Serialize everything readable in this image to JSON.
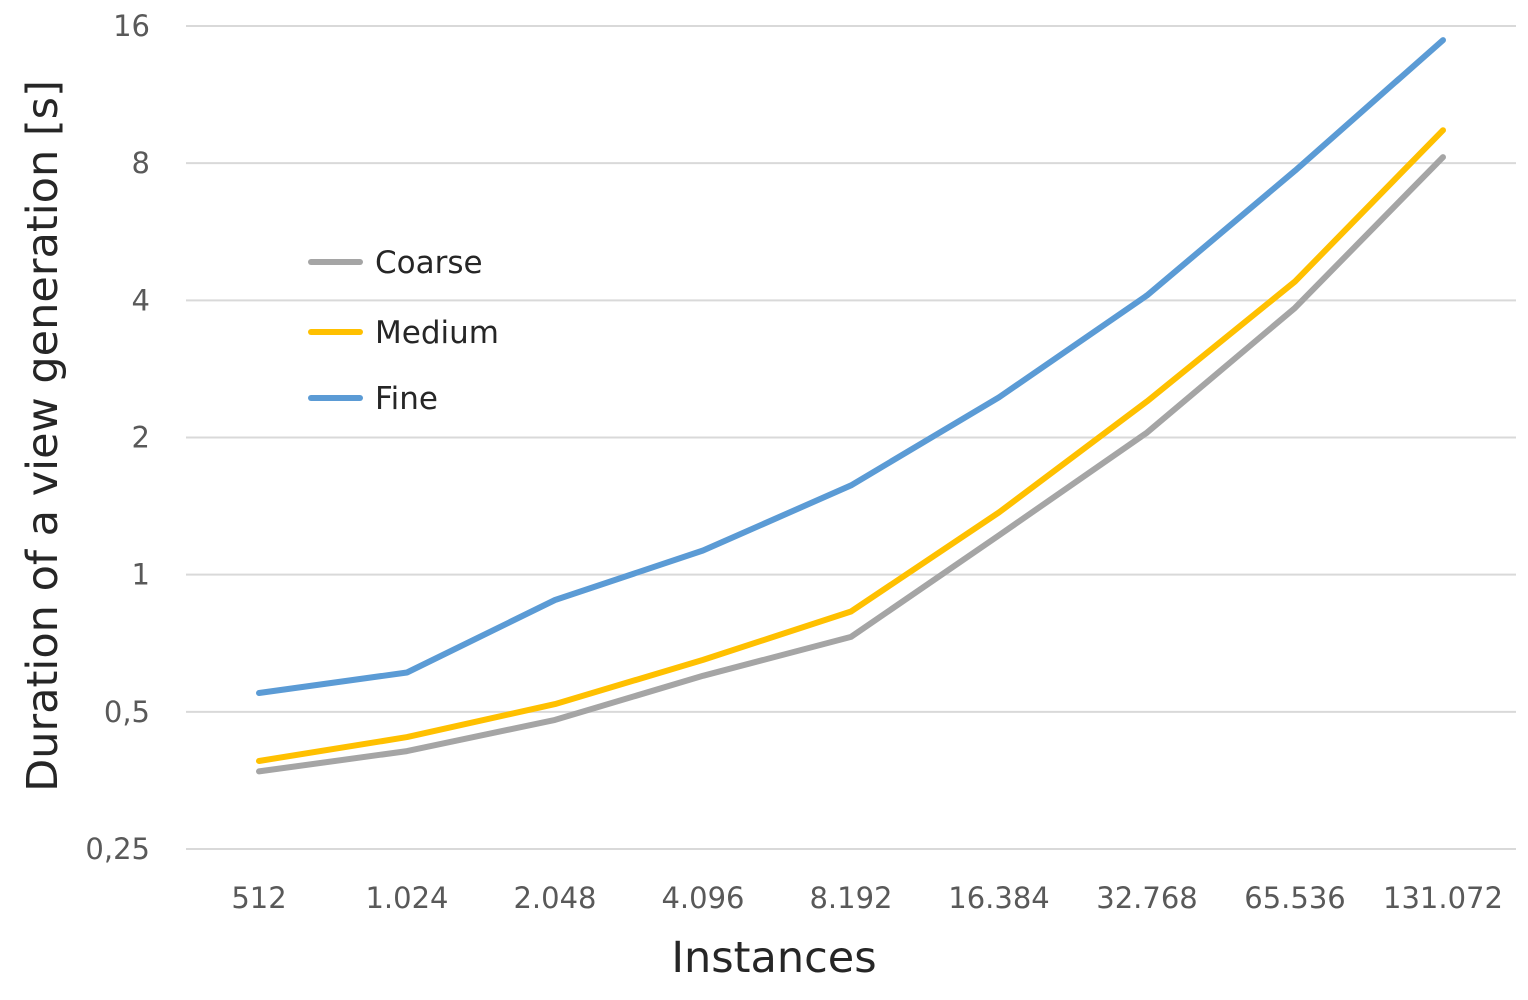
{
  "chart_data": {
    "type": "line",
    "title": "",
    "xlabel": "Instances",
    "ylabel": "Duration of a view generation [s]",
    "y_scale": "log2",
    "ylim": [
      0.25,
      16
    ],
    "y_ticks": [
      {
        "value": 0.25,
        "label": "0,25"
      },
      {
        "value": 0.5,
        "label": "0,5"
      },
      {
        "value": 1,
        "label": "1"
      },
      {
        "value": 2,
        "label": "2"
      },
      {
        "value": 4,
        "label": "4"
      },
      {
        "value": 8,
        "label": "8"
      },
      {
        "value": 16,
        "label": "16"
      }
    ],
    "categories": [
      "512",
      "1.024",
      "2.048",
      "4.096",
      "8.192",
      "16.384",
      "32.768",
      "65.536",
      "131.072"
    ],
    "grid": true,
    "legend_position": "upper-left",
    "series": [
      {
        "name": "Coarse",
        "color": "#a5a5a5",
        "values": [
          0.37,
          0.41,
          0.48,
          0.6,
          0.73,
          1.22,
          2.05,
          3.85,
          8.25
        ]
      },
      {
        "name": "Medium",
        "color": "#ffc000",
        "values": [
          0.39,
          0.44,
          0.52,
          0.65,
          0.83,
          1.37,
          2.4,
          4.4,
          9.45
        ]
      },
      {
        "name": "Fine",
        "color": "#5b9bd5",
        "values": [
          0.55,
          0.61,
          0.88,
          1.13,
          1.57,
          2.45,
          4.1,
          7.7,
          14.9
        ]
      }
    ]
  }
}
